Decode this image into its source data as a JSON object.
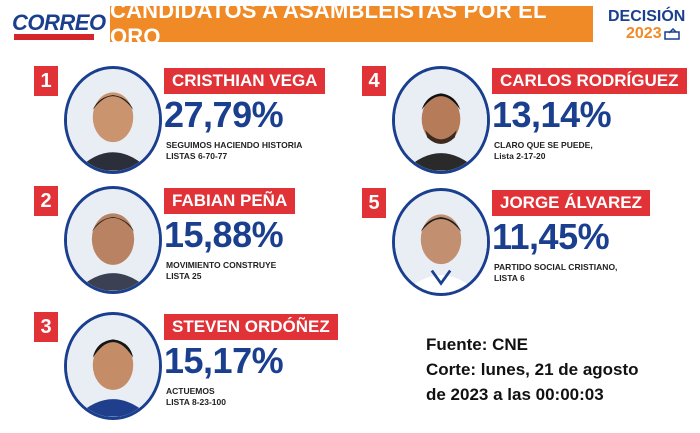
{
  "header": {
    "logo_left": "CORREO",
    "title": "CANDIDATOS A ASAMBLEÍSTAS POR EL ORO",
    "logo_right_line1": "DECISIÓN",
    "logo_right_line2": "2023"
  },
  "candidates": [
    {
      "rank": "1",
      "name": "CRISTHIAN VEGA",
      "percent": "27,79%",
      "party": "SEGUIMOS HACIENDO HISTORIA",
      "list": "LISTAS 6-70-77"
    },
    {
      "rank": "2",
      "name": "FABIAN PEÑA",
      "percent": "15,88%",
      "party": "MOVIMIENTO CONSTRUYE",
      "list": "LISTA 25"
    },
    {
      "rank": "3",
      "name": "STEVEN ORDÓÑEZ",
      "percent": "15,17%",
      "party": "ACTUEMOS",
      "list": "LISTA 8-23-100"
    },
    {
      "rank": "4",
      "name": "CARLOS RODRÍGUEZ",
      "percent": "13,14%",
      "party": "CLARO QUE SE PUEDE,",
      "list": "Lista 2-17-20"
    },
    {
      "rank": "5",
      "name": "JORGE ÁLVAREZ",
      "percent": "11,45%",
      "party": "PARTIDO SOCIAL CRISTIANO,",
      "list": "LISTA 6"
    }
  ],
  "source": {
    "line1": "Fuente: CNE",
    "line2": "Corte: lunes, 21 de agosto",
    "line3": "de 2023 a las 00:00:03"
  },
  "colors": {
    "banner": "#f08a26",
    "accent_red": "#e03237",
    "accent_blue": "#1b3f8f"
  }
}
